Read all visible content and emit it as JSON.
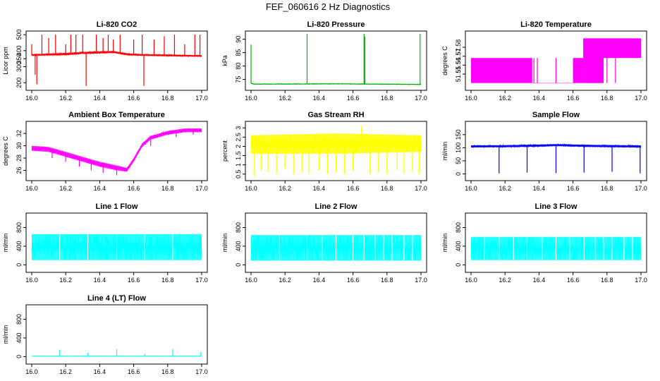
{
  "figure": {
    "title": "FEF_060616  2 Hz Diagnostics"
  },
  "chart_data": [
    {
      "type": "line",
      "title": "Li-820 CO2",
      "ylabel": "Licor ppm",
      "color": "#ff0000",
      "xlim": [
        16.0,
        17.0
      ],
      "ylim": [
        170,
        505
      ],
      "xticks": [
        16.0,
        16.2,
        16.4,
        16.6,
        16.8,
        17.0
      ],
      "xtick_labels": [
        "16.0",
        "16.2",
        "16.4",
        "16.6",
        "16.8",
        "17.0"
      ],
      "yticks": [
        200,
        300,
        350,
        400,
        500
      ],
      "ytick_labels": [
        "200",
        "300",
        "350",
        "400",
        "500"
      ],
      "series": [
        {
          "band": [
            [
              16.0,
              368,
              378
            ],
            [
              16.1,
              370,
              382
            ],
            [
              16.2,
              372,
              386
            ],
            [
              16.3,
              380,
              392
            ],
            [
              16.4,
              383,
              396
            ],
            [
              16.48,
              386,
              398
            ],
            [
              16.56,
              372,
              384
            ],
            [
              16.65,
              368,
              378
            ],
            [
              16.8,
              365,
              376
            ],
            [
              17.0,
              362,
              372
            ]
          ],
          "spikes": [
            [
              16.0,
              440
            ],
            [
              16.02,
              250
            ],
            [
              16.03,
              190
            ],
            [
              16.06,
              500
            ],
            [
              16.1,
              480
            ],
            [
              16.14,
              500
            ],
            [
              16.2,
              440
            ],
            [
              16.23,
              500
            ],
            [
              16.26,
              500
            ],
            [
              16.3,
              500
            ],
            [
              16.32,
              180
            ],
            [
              16.38,
              500
            ],
            [
              16.42,
              480
            ],
            [
              16.45,
              500
            ],
            [
              16.48,
              470
            ],
            [
              16.52,
              500
            ],
            [
              16.6,
              470
            ],
            [
              16.65,
              500
            ],
            [
              16.66,
              180
            ],
            [
              16.72,
              470
            ],
            [
              16.78,
              490
            ],
            [
              16.84,
              500
            ],
            [
              16.9,
              440
            ],
            [
              16.96,
              500
            ],
            [
              16.99,
              500
            ]
          ]
        }
      ]
    },
    {
      "type": "line",
      "title": "Li-820 Pressure",
      "ylabel": "kPa",
      "color": "#00b000",
      "xlim": [
        16.0,
        17.0
      ],
      "ylim": [
        72,
        92
      ],
      "xticks": [
        16.0,
        16.2,
        16.4,
        16.6,
        16.8,
        17.0
      ],
      "xtick_labels": [
        "16.0",
        "16.2",
        "16.4",
        "16.6",
        "16.8",
        "17.0"
      ],
      "yticks": [
        75,
        80,
        85,
        90
      ],
      "ytick_labels": [
        "75",
        "80",
        "85",
        "90"
      ],
      "series": [
        {
          "band": [
            [
              16.0,
              73.4,
              73.8
            ],
            [
              16.02,
              73.1,
              73.4
            ],
            [
              16.5,
              73.2,
              73.5
            ],
            [
              17.0,
              73.0,
              73.3
            ]
          ],
          "spikes": [
            [
              16.0,
              88
            ],
            [
              16.33,
              92
            ],
            [
              16.665,
              92
            ],
            [
              16.67,
              91
            ],
            [
              16.995,
              92
            ]
          ]
        }
      ]
    },
    {
      "type": "line",
      "title": "Li-820 Temperature",
      "ylabel": "degrees C",
      "color": "#ff00ff",
      "xlim": [
        16.0,
        17.0
      ],
      "ylim": [
        51.535,
        51.595
      ],
      "xticks": [
        16.0,
        16.2,
        16.4,
        16.6,
        16.8,
        17.0
      ],
      "xtick_labels": [
        "16.0",
        "16.2",
        "16.4",
        "16.6",
        "16.8",
        "17.0"
      ],
      "yticks": [
        51.55,
        51.56,
        51.57,
        51.58
      ],
      "ytick_labels": [
        "51.55",
        "51.56",
        "51.57",
        "51.58"
      ],
      "series": [
        {
          "step": [
            [
              16.0,
              51.568,
              51.54
            ],
            [
              16.36,
              51.54,
              51.54
            ],
            [
              16.6,
              51.568,
              51.54
            ],
            [
              16.66,
              51.59,
              51.54
            ],
            [
              16.78,
              51.59,
              51.568
            ],
            [
              17.0,
              51.59,
              51.568
            ]
          ],
          "spikes": [
            [
              16.37,
              51.568
            ],
            [
              16.39,
              51.568
            ],
            [
              16.5,
              51.568
            ],
            [
              16.7,
              51.568
            ],
            [
              16.73,
              51.568
            ],
            [
              16.76,
              51.568
            ],
            [
              16.8,
              51.568
            ],
            [
              16.85,
              51.568
            ]
          ]
        }
      ]
    },
    {
      "type": "line",
      "title": "Ambient Box Temperature",
      "ylabel": "degrees C",
      "color": "#ff00ff",
      "xlim": [
        16.0,
        17.0
      ],
      "ylim": [
        24.8,
        33.5
      ],
      "xticks": [
        16.0,
        16.2,
        16.4,
        16.6,
        16.8,
        17.0
      ],
      "xtick_labels": [
        "16.0",
        "16.2",
        "16.4",
        "16.6",
        "16.8",
        "17.0"
      ],
      "yticks": [
        26,
        28,
        30,
        32
      ],
      "ytick_labels": [
        "26",
        "28",
        "30",
        "32"
      ],
      "series": [
        {
          "band": [
            [
              16.0,
              29.2,
              30.0
            ],
            [
              16.1,
              29.0,
              29.8
            ],
            [
              16.2,
              28.2,
              29.0
            ],
            [
              16.3,
              27.4,
              28.2
            ],
            [
              16.4,
              26.6,
              27.4
            ],
            [
              16.5,
              26.0,
              26.8
            ],
            [
              16.56,
              25.8,
              26.4
            ],
            [
              16.6,
              27.4,
              28.0
            ],
            [
              16.65,
              29.8,
              30.4
            ],
            [
              16.7,
              31.0,
              31.6
            ],
            [
              16.8,
              31.8,
              32.4
            ],
            [
              16.9,
              32.2,
              32.8
            ],
            [
              17.0,
              32.2,
              32.8
            ]
          ],
          "spikes": [
            [
              16.12,
              28.0
            ],
            [
              16.2,
              27.4
            ],
            [
              16.28,
              26.6
            ],
            [
              16.35,
              26.0
            ],
            [
              16.42,
              25.6
            ],
            [
              16.5,
              25.2
            ],
            [
              16.7,
              30.0
            ],
            [
              16.85,
              31.4
            ],
            [
              16.95,
              31.8
            ]
          ]
        }
      ]
    },
    {
      "type": "line",
      "title": "Gas Stream RH",
      "ylabel": "percent",
      "color": "#ffff00",
      "xlim": [
        16.0,
        17.0
      ],
      "ylim": [
        0.3,
        3.2
      ],
      "xticks": [
        16.0,
        16.2,
        16.4,
        16.6,
        16.8,
        17.0
      ],
      "xtick_labels": [
        "16.0",
        "16.2",
        "16.4",
        "16.6",
        "16.8",
        "17.0"
      ],
      "yticks": [
        0.5,
        1.0,
        1.5,
        2.0,
        2.5,
        3.0
      ],
      "ytick_labels": [
        "0.5",
        "1",
        "1.5",
        "2",
        "2.5",
        "3"
      ],
      "series": [
        {
          "band": [
            [
              16.0,
              1.6,
              2.6
            ],
            [
              16.5,
              1.6,
              2.7
            ],
            [
              17.0,
              1.7,
              2.6
            ]
          ],
          "spikes": [
            [
              16.02,
              0.4
            ],
            [
              16.06,
              0.7
            ],
            [
              16.1,
              0.6
            ],
            [
              16.15,
              0.5
            ],
            [
              16.2,
              0.8
            ],
            [
              16.25,
              0.5
            ],
            [
              16.3,
              0.6
            ],
            [
              16.34,
              0.5
            ],
            [
              16.4,
              0.7
            ],
            [
              16.45,
              0.5
            ],
            [
              16.5,
              0.6
            ],
            [
              16.55,
              0.5
            ],
            [
              16.6,
              0.7
            ],
            [
              16.65,
              3.1
            ],
            [
              16.7,
              0.5
            ],
            [
              16.75,
              0.6
            ],
            [
              16.8,
              0.5
            ],
            [
              16.86,
              0.7
            ],
            [
              16.9,
              0.5
            ],
            [
              16.95,
              0.6
            ],
            [
              16.99,
              0.5
            ]
          ]
        }
      ]
    },
    {
      "type": "line",
      "title": "Sample Flow",
      "ylabel": "ml/min",
      "color": "#0000ff",
      "xlim": [
        16.0,
        17.0
      ],
      "ylim": [
        -15,
        190
      ],
      "xticks": [
        16.0,
        16.2,
        16.4,
        16.6,
        16.8,
        17.0
      ],
      "xtick_labels": [
        "16.0",
        "16.2",
        "16.4",
        "16.6",
        "16.8",
        "17.0"
      ],
      "yticks": [
        0,
        50,
        100,
        150
      ],
      "ytick_labels": [
        "0",
        "50",
        "100",
        "150"
      ],
      "series": [
        {
          "band": [
            [
              16.0,
              101,
              109
            ],
            [
              16.2,
              102,
              110
            ],
            [
              16.4,
              104,
              112
            ],
            [
              16.5,
              106,
              114
            ],
            [
              16.7,
              103,
              111
            ],
            [
              17.0,
              101,
              109
            ]
          ],
          "spikes": [
            [
              16.165,
              2
            ],
            [
              16.33,
              5
            ],
            [
              16.5,
              3
            ],
            [
              16.665,
              5
            ],
            [
              16.83,
              8
            ],
            [
              16.995,
              2
            ]
          ]
        }
      ]
    },
    {
      "type": "line",
      "title": "Line 1 Flow",
      "ylabel": "ml/min",
      "color": "#00ffff",
      "xlim": [
        16.0,
        17.0
      ],
      "ylim": [
        -100,
        1050
      ],
      "xticks": [
        16.0,
        16.2,
        16.4,
        16.6,
        16.8,
        17.0
      ],
      "xtick_labels": [
        "16.0",
        "16.2",
        "16.4",
        "16.6",
        "16.8",
        "17.0"
      ],
      "yticks": [
        0,
        400,
        800
      ],
      "ytick_labels": [
        "0",
        "400",
        "800"
      ],
      "series": [
        {
          "band": [
            [
              16.0,
              100,
              660
            ],
            [
              17.0,
              100,
              660
            ]
          ],
          "gaps": [
            16.165,
            16.33,
            16.5,
            16.665,
            16.83
          ]
        }
      ]
    },
    {
      "type": "line",
      "title": "Line 2 Flow",
      "ylabel": "ml/min",
      "color": "#00ffff",
      "xlim": [
        16.0,
        17.0
      ],
      "ylim": [
        -100,
        1050
      ],
      "xticks": [
        16.0,
        16.2,
        16.4,
        16.6,
        16.8,
        17.0
      ],
      "xtick_labels": [
        "16.0",
        "16.2",
        "16.4",
        "16.6",
        "16.8",
        "17.0"
      ],
      "yticks": [
        0,
        400,
        800
      ],
      "ytick_labels": [
        "0",
        "400",
        "800"
      ],
      "series": [
        {
          "band": [
            [
              16.0,
              90,
              640
            ],
            [
              17.0,
              90,
              640
            ]
          ],
          "gaps": [
            16.165,
            16.33,
            16.42,
            16.5,
            16.6,
            16.665,
            16.73,
            16.78,
            16.83,
            16.9,
            16.95
          ]
        }
      ]
    },
    {
      "type": "line",
      "title": "Line 3 Flow",
      "ylabel": "ml/min",
      "color": "#00ffff",
      "xlim": [
        16.0,
        17.0
      ],
      "ylim": [
        -100,
        1050
      ],
      "xticks": [
        16.0,
        16.2,
        16.4,
        16.6,
        16.8,
        17.0
      ],
      "xtick_labels": [
        "16.0",
        "16.2",
        "16.4",
        "16.6",
        "16.8",
        "17.0"
      ],
      "yticks": [
        0,
        400,
        800
      ],
      "ytick_labels": [
        "0",
        "400",
        "800"
      ],
      "series": [
        {
          "band": [
            [
              16.0,
              100,
              600
            ],
            [
              17.0,
              100,
              600
            ]
          ],
          "gaps": [
            16.08,
            16.165,
            16.25,
            16.33,
            16.42,
            16.5,
            16.58,
            16.665,
            16.73,
            16.78,
            16.83,
            16.9,
            16.95
          ]
        }
      ]
    },
    {
      "type": "line",
      "title": "Line 4 (LT) Flow",
      "ylabel": "ml/min",
      "color": "#00ffff",
      "xlim": [
        16.0,
        17.0
      ],
      "ylim": [
        -100,
        1050
      ],
      "xticks": [
        16.0,
        16.2,
        16.4,
        16.6,
        16.8,
        17.0
      ],
      "xtick_labels": [
        "16.0",
        "16.2",
        "16.4",
        "16.6",
        "16.8",
        "17.0"
      ],
      "yticks": [
        0,
        400,
        800
      ],
      "ytick_labels": [
        "0",
        "400",
        "800"
      ],
      "series": [
        {
          "band": [
            [
              16.0,
              5,
              15
            ],
            [
              17.0,
              5,
              15
            ]
          ],
          "spikes": [
            [
              16.165,
              150
            ],
            [
              16.33,
              80
            ],
            [
              16.5,
              160
            ],
            [
              16.665,
              60
            ],
            [
              16.83,
              160
            ],
            [
              16.995,
              100
            ]
          ]
        }
      ]
    }
  ]
}
